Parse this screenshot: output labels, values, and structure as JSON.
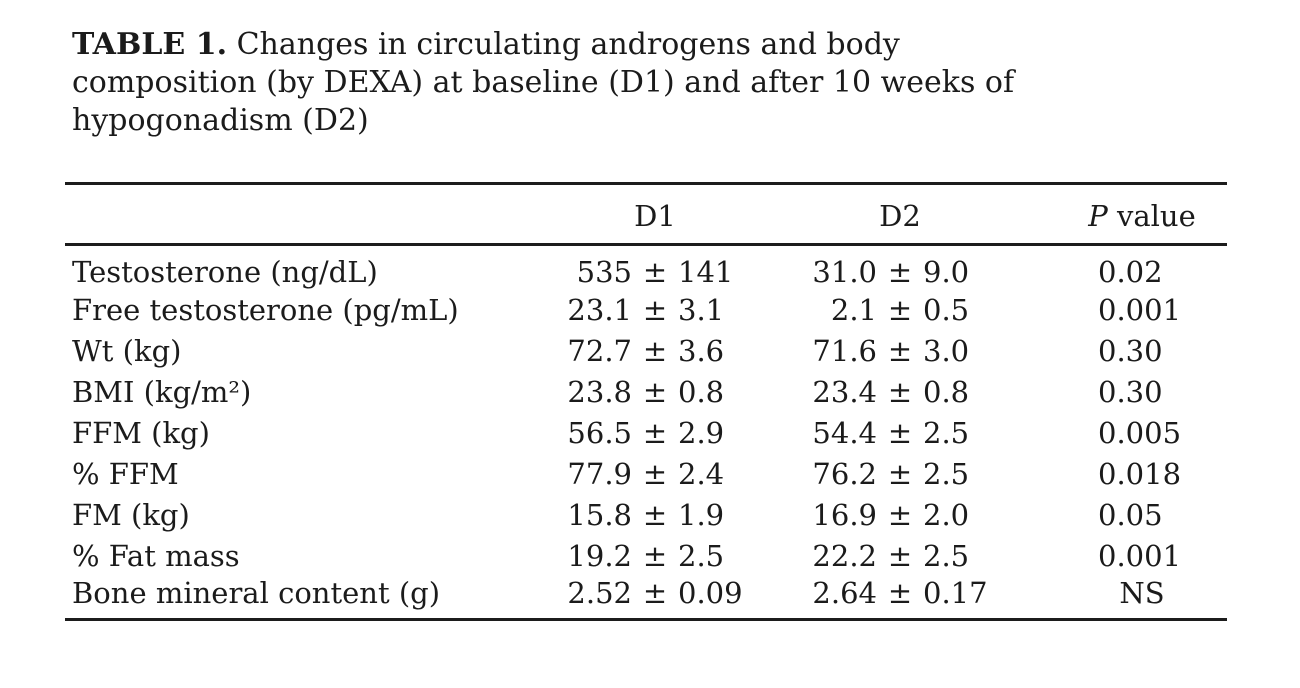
{
  "colors": {
    "background": "#ffffff",
    "text": "#1b1b1b",
    "rule": "#1c1c1c"
  },
  "title": {
    "label": "TABLE 1.",
    "line1_rest": " Changes in circulating androgens and body",
    "line2": "composition (by DEXA) at baseline (D1) and after 10 weeks of",
    "line3": "hypogonadism (D2)"
  },
  "table": {
    "plus_minus": "±",
    "columns": {
      "rowhead": "",
      "d1": "D1",
      "d2": "D2",
      "p_italic": "P",
      "p_rest": " value"
    },
    "rows": [
      {
        "label": "Testosterone (ng/dL)",
        "d1": {
          "mean": "535",
          "sd": "141"
        },
        "d2": {
          "mean": "31.0",
          "sd": "9.0"
        },
        "p": "0.02"
      },
      {
        "label": "Free testosterone (pg/mL)",
        "d1": {
          "mean": "23.1",
          "sd": "3.1"
        },
        "d2": {
          "mean": "2.1",
          "sd": "0.5"
        },
        "p": "0.001"
      },
      {
        "label": "Wt (kg)",
        "d1": {
          "mean": "72.7",
          "sd": "3.6"
        },
        "d2": {
          "mean": "71.6",
          "sd": "3.0"
        },
        "p": "0.30"
      },
      {
        "label": "BMI (kg/m²)",
        "d1": {
          "mean": "23.8",
          "sd": "0.8"
        },
        "d2": {
          "mean": "23.4",
          "sd": "0.8"
        },
        "p": "0.30"
      },
      {
        "label": "FFM (kg)",
        "d1": {
          "mean": "56.5",
          "sd": "2.9"
        },
        "d2": {
          "mean": "54.4",
          "sd": "2.5"
        },
        "p": "0.005"
      },
      {
        "label": "% FFM",
        "d1": {
          "mean": "77.9",
          "sd": "2.4"
        },
        "d2": {
          "mean": "76.2",
          "sd": "2.5"
        },
        "p": "0.018"
      },
      {
        "label": "FM (kg)",
        "d1": {
          "mean": "15.8",
          "sd": "1.9"
        },
        "d2": {
          "mean": "16.9",
          "sd": "2.0"
        },
        "p": "0.05"
      },
      {
        "label": "% Fat mass",
        "d1": {
          "mean": "19.2",
          "sd": "2.5"
        },
        "d2": {
          "mean": "22.2",
          "sd": "2.5"
        },
        "p": "0.001"
      },
      {
        "label": "Bone mineral content (g)",
        "d1": {
          "mean": "2.52",
          "sd": "0.09"
        },
        "d2": {
          "mean": "2.64",
          "sd": "0.17"
        },
        "p": "NS"
      }
    ]
  }
}
